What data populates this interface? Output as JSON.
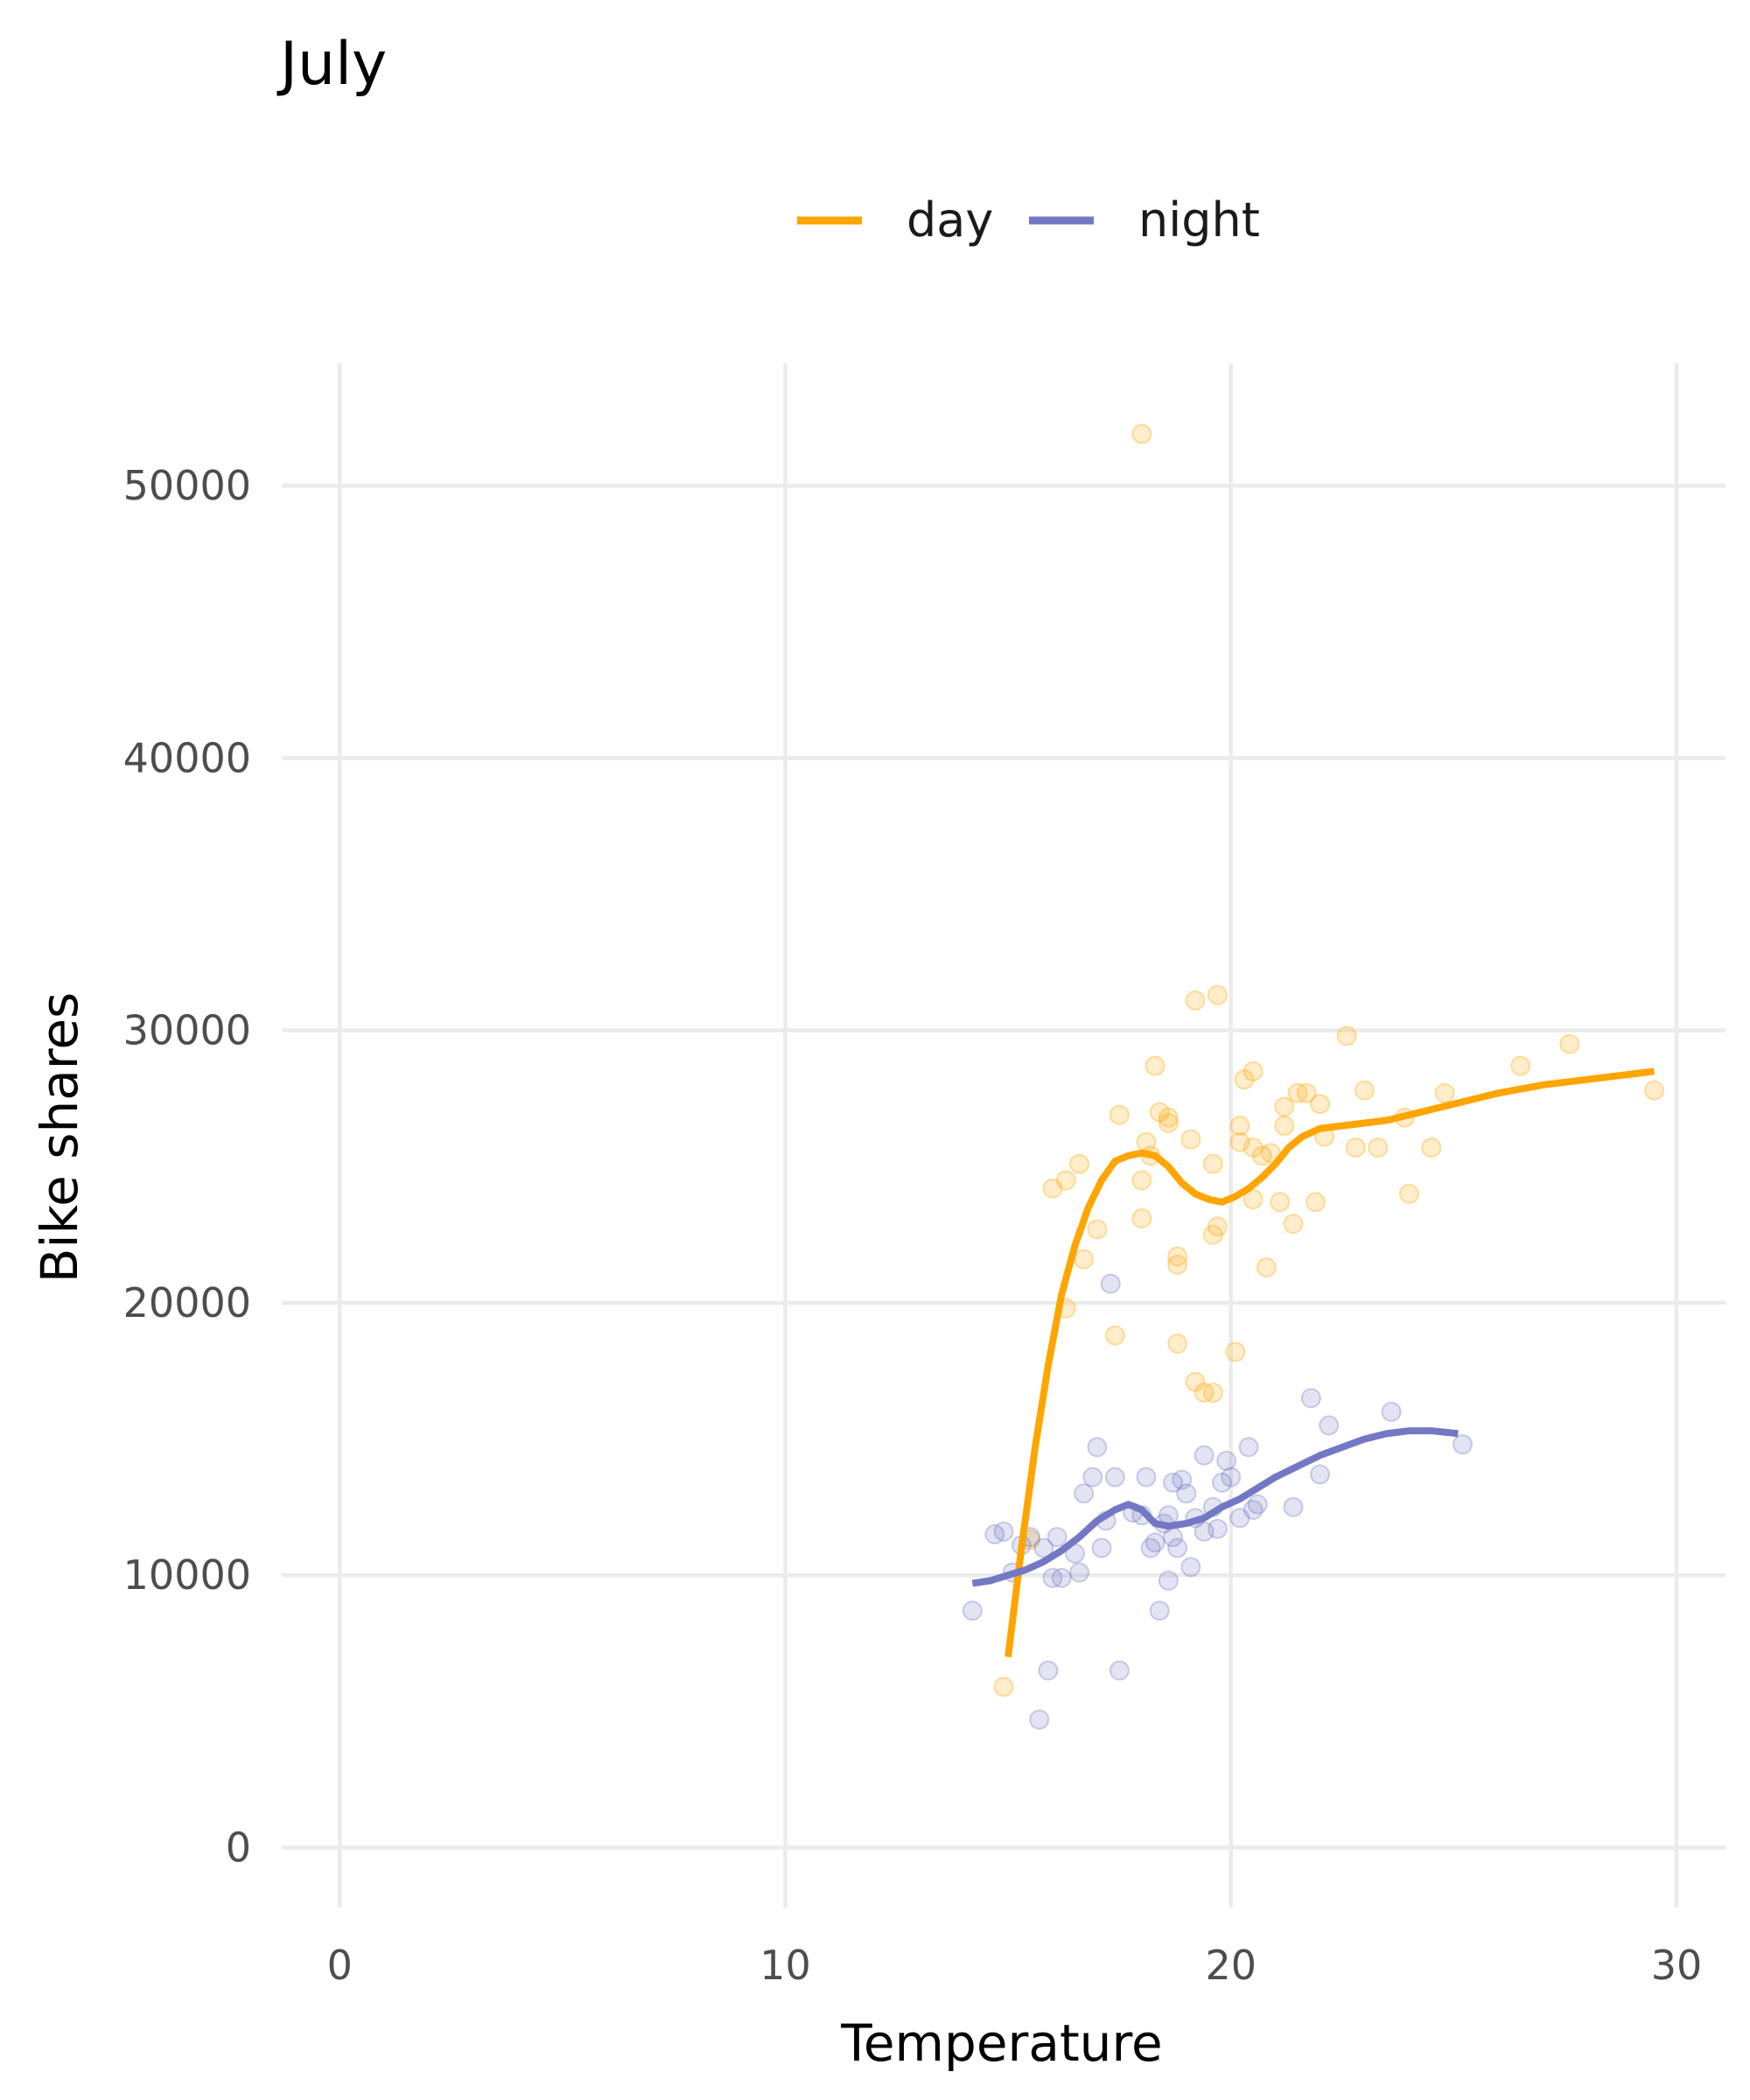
{
  "chart_data": {
    "type": "scatter",
    "title": "July",
    "xlabel": "Temperature",
    "ylabel": "Bike shares",
    "xlim": [
      -1.3,
      31.1
    ],
    "ylim": [
      -2200,
      54500
    ],
    "xticks": [
      0,
      10,
      20,
      30
    ],
    "yticks": [
      0,
      10000,
      20000,
      30000,
      40000,
      50000
    ],
    "xtick_labels": [
      "0",
      "10",
      "20",
      "30"
    ],
    "ytick_labels": [
      "0",
      "10000",
      "20000",
      "30000",
      "40000",
      "50000"
    ],
    "grid": true,
    "legend_position": "top",
    "series": [
      {
        "name": "day",
        "color": "#FFA500",
        "points": [
          [
            14.9,
            5900
          ],
          [
            15.5,
            11300
          ],
          [
            16.0,
            24200
          ],
          [
            16.3,
            24500
          ],
          [
            16.6,
            25100
          ],
          [
            16.7,
            21600
          ],
          [
            17.0,
            22700
          ],
          [
            16.3,
            19800
          ],
          [
            17.4,
            18800
          ],
          [
            17.5,
            26900
          ],
          [
            18.0,
            24500
          ],
          [
            18.0,
            23100
          ],
          [
            18.1,
            25900
          ],
          [
            18.2,
            25400
          ],
          [
            18.3,
            28700
          ],
          [
            18.4,
            27000
          ],
          [
            18.6,
            26800
          ],
          [
            18.6,
            26600
          ],
          [
            18.8,
            18500
          ],
          [
            18.8,
            21400
          ],
          [
            18.8,
            21700
          ],
          [
            19.1,
            26000
          ],
          [
            19.2,
            31100
          ],
          [
            19.2,
            17100
          ],
          [
            19.4,
            16700
          ],
          [
            19.6,
            16700
          ],
          [
            19.6,
            25100
          ],
          [
            19.6,
            22500
          ],
          [
            19.7,
            22800
          ],
          [
            19.7,
            31300
          ],
          [
            20.1,
            18200
          ],
          [
            20.2,
            26500
          ],
          [
            20.2,
            25900
          ],
          [
            20.3,
            28200
          ],
          [
            20.5,
            28500
          ],
          [
            20.5,
            25700
          ],
          [
            20.5,
            23800
          ],
          [
            20.7,
            25400
          ],
          [
            20.8,
            21300
          ],
          [
            20.9,
            25500
          ],
          [
            21.1,
            23700
          ],
          [
            21.2,
            26500
          ],
          [
            21.2,
            27200
          ],
          [
            21.4,
            22900
          ],
          [
            21.5,
            27700
          ],
          [
            21.7,
            27700
          ],
          [
            21.9,
            23700
          ],
          [
            22.0,
            27300
          ],
          [
            22.1,
            26100
          ],
          [
            22.6,
            29800
          ],
          [
            22.8,
            25700
          ],
          [
            23.0,
            27800
          ],
          [
            23.3,
            25700
          ],
          [
            23.9,
            26800
          ],
          [
            24.0,
            24000
          ],
          [
            24.5,
            25700
          ],
          [
            24.8,
            27700
          ],
          [
            26.5,
            28700
          ],
          [
            27.6,
            29500
          ],
          [
            29.5,
            27800
          ],
          [
            18.0,
            51900
          ]
        ],
        "smooth": [
          [
            15.0,
            7000
          ],
          [
            15.3,
            11000
          ],
          [
            15.6,
            14600
          ],
          [
            15.9,
            17700
          ],
          [
            16.2,
            20300
          ],
          [
            16.5,
            22100
          ],
          [
            16.8,
            23500
          ],
          [
            17.1,
            24500
          ],
          [
            17.4,
            25200
          ],
          [
            17.7,
            25400
          ],
          [
            18.0,
            25500
          ],
          [
            18.3,
            25400
          ],
          [
            18.6,
            25000
          ],
          [
            18.9,
            24400
          ],
          [
            19.2,
            24000
          ],
          [
            19.5,
            23800
          ],
          [
            19.8,
            23700
          ],
          [
            20.1,
            23900
          ],
          [
            20.4,
            24200
          ],
          [
            20.7,
            24600
          ],
          [
            21.0,
            25100
          ],
          [
            21.3,
            25700
          ],
          [
            21.6,
            26100
          ],
          [
            22.0,
            26400
          ],
          [
            22.5,
            26500
          ],
          [
            23.0,
            26600
          ],
          [
            23.5,
            26700
          ],
          [
            24.0,
            26900
          ],
          [
            25.0,
            27300
          ],
          [
            26.0,
            27700
          ],
          [
            27.0,
            28000
          ],
          [
            28.0,
            28200
          ],
          [
            29.0,
            28400
          ],
          [
            29.5,
            28500
          ]
        ]
      },
      {
        "name": "night",
        "color": "#7378C4",
        "points": [
          [
            14.2,
            8700
          ],
          [
            14.7,
            11500
          ],
          [
            14.9,
            11600
          ],
          [
            15.1,
            10100
          ],
          [
            15.3,
            11100
          ],
          [
            15.5,
            11400
          ],
          [
            15.7,
            4700
          ],
          [
            15.8,
            11000
          ],
          [
            15.9,
            6500
          ],
          [
            16.0,
            9900
          ],
          [
            16.1,
            11400
          ],
          [
            16.2,
            9900
          ],
          [
            16.5,
            10800
          ],
          [
            16.6,
            10100
          ],
          [
            16.7,
            13000
          ],
          [
            16.9,
            13600
          ],
          [
            17.0,
            14700
          ],
          [
            17.1,
            11000
          ],
          [
            17.2,
            12000
          ],
          [
            17.3,
            20700
          ],
          [
            17.4,
            13600
          ],
          [
            17.5,
            6500
          ],
          [
            17.8,
            12300
          ],
          [
            18.0,
            12200
          ],
          [
            18.1,
            13600
          ],
          [
            18.2,
            11000
          ],
          [
            18.3,
            11200
          ],
          [
            18.4,
            8700
          ],
          [
            18.5,
            11900
          ],
          [
            18.6,
            9800
          ],
          [
            18.6,
            12200
          ],
          [
            18.7,
            13400
          ],
          [
            18.7,
            11400
          ],
          [
            18.8,
            11000
          ],
          [
            18.9,
            13500
          ],
          [
            19.0,
            13000
          ],
          [
            19.1,
            10300
          ],
          [
            19.2,
            12100
          ],
          [
            19.4,
            11600
          ],
          [
            19.4,
            14400
          ],
          [
            19.6,
            12500
          ],
          [
            19.7,
            11700
          ],
          [
            19.8,
            13400
          ],
          [
            19.9,
            14200
          ],
          [
            20.0,
            13600
          ],
          [
            20.2,
            12100
          ],
          [
            20.4,
            14700
          ],
          [
            20.5,
            12400
          ],
          [
            20.6,
            12600
          ],
          [
            21.4,
            12500
          ],
          [
            21.8,
            16500
          ],
          [
            22.0,
            13700
          ],
          [
            22.2,
            15500
          ],
          [
            23.6,
            16000
          ],
          [
            25.2,
            14800
          ]
        ],
        "smooth": [
          [
            14.2,
            9700
          ],
          [
            14.6,
            9800
          ],
          [
            15.0,
            10000
          ],
          [
            15.4,
            10200
          ],
          [
            15.8,
            10500
          ],
          [
            16.2,
            10900
          ],
          [
            16.6,
            11400
          ],
          [
            17.0,
            12000
          ],
          [
            17.4,
            12400
          ],
          [
            17.7,
            12600
          ],
          [
            18.0,
            12400
          ],
          [
            18.3,
            11900
          ],
          [
            18.6,
            11800
          ],
          [
            19.0,
            11900
          ],
          [
            19.4,
            12100
          ],
          [
            19.8,
            12500
          ],
          [
            20.2,
            12800
          ],
          [
            20.6,
            13200
          ],
          [
            21.0,
            13600
          ],
          [
            21.5,
            14000
          ],
          [
            22.0,
            14400
          ],
          [
            22.5,
            14700
          ],
          [
            23.0,
            15000
          ],
          [
            23.5,
            15200
          ],
          [
            24.0,
            15300
          ],
          [
            24.5,
            15300
          ],
          [
            25.1,
            15200
          ]
        ]
      }
    ]
  }
}
